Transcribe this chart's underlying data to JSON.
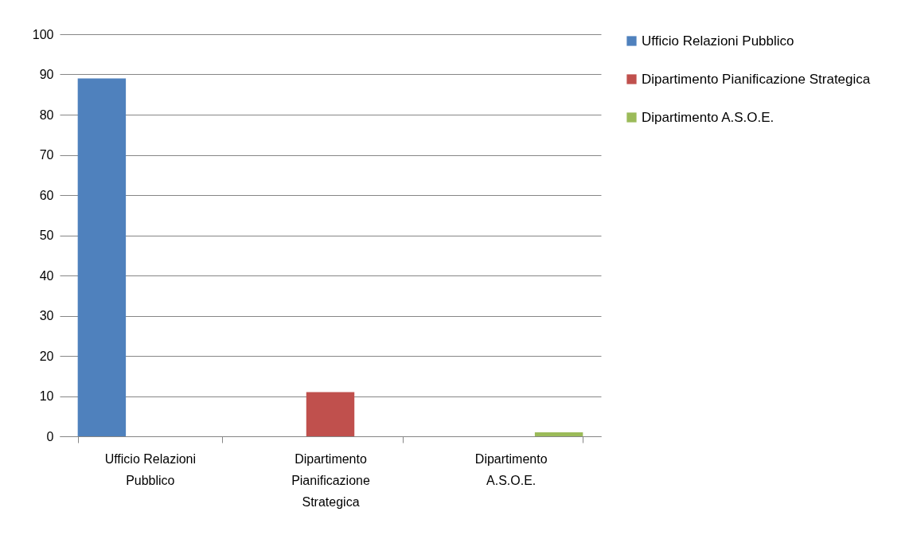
{
  "chart_data": {
    "type": "bar",
    "categories": [
      "Ufficio Relazioni Pubblico",
      "Dipartimento Pianificazione Strategica",
      "Dipartimento A.S.O.E."
    ],
    "series": [
      {
        "name": "Ufficio Relazioni Pubblico",
        "color": "#4f81bd",
        "values": [
          89,
          null,
          null
        ]
      },
      {
        "name": "Dipartimento Pianificazione Strategica",
        "color": "#c0504d",
        "values": [
          null,
          11,
          null
        ]
      },
      {
        "name": "Dipartimento A.S.O.E.",
        "color": "#9bbb59",
        "values": [
          null,
          null,
          1
        ]
      }
    ],
    "ylim": [
      0,
      100
    ],
    "yticks": [
      0,
      10,
      20,
      30,
      40,
      50,
      60,
      70,
      80,
      90,
      100
    ],
    "grid": "y",
    "legend": "right"
  }
}
